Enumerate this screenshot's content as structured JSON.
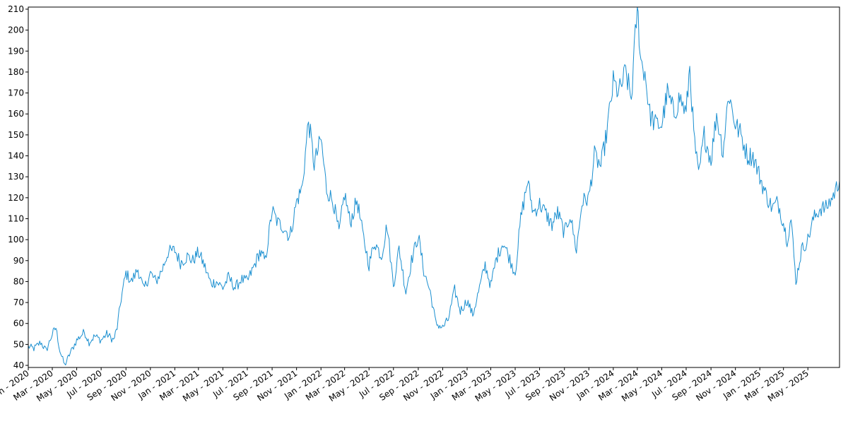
{
  "chart_data": {
    "type": "line",
    "title": "",
    "xlabel": "",
    "ylabel": "",
    "ylim": [
      39,
      211
    ],
    "yticks": [
      40,
      50,
      60,
      70,
      80,
      90,
      100,
      110,
      120,
      130,
      140,
      150,
      160,
      170,
      180,
      190,
      200,
      210
    ],
    "xlim": [
      "2020-01-01",
      "2025-07-19"
    ],
    "xticks": [
      {
        "date": "2020-01-01",
        "label": "Jan - 2020"
      },
      {
        "date": "2020-03-01",
        "label": "Mar - 2020"
      },
      {
        "date": "2020-05-01",
        "label": "May - 2020"
      },
      {
        "date": "2020-07-01",
        "label": "Jul - 2020"
      },
      {
        "date": "2020-09-01",
        "label": "Sep - 2020"
      },
      {
        "date": "2020-11-01",
        "label": "Nov - 2020"
      },
      {
        "date": "2021-01-01",
        "label": "Jan - 2021"
      },
      {
        "date": "2021-03-01",
        "label": "Mar - 2021"
      },
      {
        "date": "2021-05-01",
        "label": "May - 2021"
      },
      {
        "date": "2021-07-01",
        "label": "Jul - 2021"
      },
      {
        "date": "2021-09-01",
        "label": "Sep - 2021"
      },
      {
        "date": "2021-11-01",
        "label": "Nov - 2021"
      },
      {
        "date": "2022-01-01",
        "label": "Jan - 2022"
      },
      {
        "date": "2022-03-01",
        "label": "Mar - 2022"
      },
      {
        "date": "2022-05-01",
        "label": "May - 2022"
      },
      {
        "date": "2022-07-01",
        "label": "Jul - 2022"
      },
      {
        "date": "2022-09-01",
        "label": "Sep - 2022"
      },
      {
        "date": "2022-11-01",
        "label": "Nov - 2022"
      },
      {
        "date": "2023-01-01",
        "label": "Jan - 2023"
      },
      {
        "date": "2023-03-01",
        "label": "Mar - 2023"
      },
      {
        "date": "2023-05-01",
        "label": "May - 2023"
      },
      {
        "date": "2023-07-01",
        "label": "Jul - 2023"
      },
      {
        "date": "2023-09-01",
        "label": "Sep - 2023"
      },
      {
        "date": "2023-11-01",
        "label": "Nov - 2023"
      },
      {
        "date": "2024-01-01",
        "label": "Jan - 2024"
      },
      {
        "date": "2024-03-01",
        "label": "Mar - 2024"
      },
      {
        "date": "2024-05-01",
        "label": "May - 2024"
      },
      {
        "date": "2024-07-01",
        "label": "Jul - 2024"
      },
      {
        "date": "2024-09-01",
        "label": "Sep - 2024"
      },
      {
        "date": "2024-11-01",
        "label": "Nov - 2024"
      },
      {
        "date": "2025-01-01",
        "label": "Jan - 2025"
      },
      {
        "date": "2025-03-01",
        "label": "Mar - 2025"
      },
      {
        "date": "2025-05-01",
        "label": "May - 2025"
      }
    ],
    "grid": false,
    "legend": "none",
    "line_color": "#1a8fd0",
    "series": [
      {
        "x": [
          "2020-01-01",
          "2020-01-15",
          "2020-02-01",
          "2020-02-15",
          "2020-03-01",
          "2020-03-10",
          "2020-03-20",
          "2020-04-01",
          "2020-04-15",
          "2020-05-01",
          "2020-05-20",
          "2020-06-01",
          "2020-06-15",
          "2020-07-01",
          "2020-07-15",
          "2020-08-01",
          "2020-08-10",
          "2020-08-20",
          "2020-09-01",
          "2020-09-15",
          "2020-10-01",
          "2020-10-15",
          "2020-11-01",
          "2020-11-15",
          "2020-12-01",
          "2020-12-15",
          "2021-01-01",
          "2021-01-15",
          "2021-02-01",
          "2021-02-15",
          "2021-03-01",
          "2021-03-15",
          "2021-04-01",
          "2021-04-15",
          "2021-05-01",
          "2021-05-15",
          "2021-06-01",
          "2021-06-15",
          "2021-07-01",
          "2021-07-15",
          "2021-08-01",
          "2021-08-15",
          "2021-09-01",
          "2021-09-15",
          "2021-10-01",
          "2021-10-15",
          "2021-11-01",
          "2021-11-15",
          "2021-12-01",
          "2021-12-15",
          "2022-01-01",
          "2022-01-15",
          "2022-02-01",
          "2022-02-15",
          "2022-03-01",
          "2022-03-15",
          "2022-04-01",
          "2022-04-15",
          "2022-05-01",
          "2022-05-15",
          "2022-06-01",
          "2022-06-15",
          "2022-07-01",
          "2022-07-15",
          "2022-08-01",
          "2022-08-15",
          "2022-09-01",
          "2022-09-15",
          "2022-10-01",
          "2022-10-15",
          "2022-11-01",
          "2022-11-15",
          "2022-12-01",
          "2022-12-15",
          "2023-01-01",
          "2023-01-15",
          "2023-02-01",
          "2023-02-15",
          "2023-03-01",
          "2023-03-15",
          "2023-04-01",
          "2023-04-15",
          "2023-05-01",
          "2023-05-15",
          "2023-06-01",
          "2023-06-15",
          "2023-07-01",
          "2023-07-15",
          "2023-08-01",
          "2023-08-15",
          "2023-09-01",
          "2023-09-15",
          "2023-10-01",
          "2023-10-15",
          "2023-11-01",
          "2023-11-15",
          "2023-12-01",
          "2023-12-15",
          "2024-01-01",
          "2024-01-15",
          "2024-02-01",
          "2024-02-15",
          "2024-03-01",
          "2024-03-10",
          "2024-03-20",
          "2024-04-01",
          "2024-04-15",
          "2024-05-01",
          "2024-05-15",
          "2024-06-01",
          "2024-06-15",
          "2024-07-01",
          "2024-07-10",
          "2024-07-20",
          "2024-08-01",
          "2024-08-15",
          "2024-09-01",
          "2024-09-15",
          "2024-10-01",
          "2024-10-15",
          "2024-11-01",
          "2024-11-15",
          "2024-12-01",
          "2024-12-15",
          "2025-01-01",
          "2025-01-15",
          "2025-02-01",
          "2025-02-15",
          "2025-03-01",
          "2025-03-10",
          "2025-03-20",
          "2025-04-01",
          "2025-04-15",
          "2025-05-01",
          "2025-05-15",
          "2025-06-01",
          "2025-06-15",
          "2025-07-01",
          "2025-07-19"
        ],
        "y": [
          49,
          48,
          51,
          47,
          55,
          58,
          47,
          40,
          46,
          52,
          56,
          51,
          54,
          52,
          55,
          52,
          58,
          72,
          84,
          80,
          86,
          76,
          84,
          80,
          86,
          94,
          95,
          89,
          92,
          90,
          94,
          88,
          79,
          80,
          77,
          82,
          77,
          81,
          80,
          86,
          94,
          90,
          114,
          108,
          106,
          101,
          118,
          125,
          157,
          136,
          148,
          124,
          118,
          103,
          122,
          108,
          119,
          103,
          88,
          99,
          92,
          107,
          78,
          96,
          75,
          90,
          102,
          85,
          75,
          60,
          58,
          62,
          76,
          66,
          71,
          64,
          77,
          88,
          78,
          91,
          99,
          92,
          84,
          110,
          128,
          113,
          117,
          113,
          107,
          113,
          103,
          112,
          95,
          118,
          120,
          140,
          135,
          150,
          175,
          170,
          180,
          167,
          212,
          185,
          180,
          160,
          155,
          155,
          170,
          160,
          168,
          160,
          183,
          150,
          130,
          150,
          138,
          160,
          142,
          170,
          155,
          150,
          140,
          140,
          130,
          122,
          115,
          118,
          108,
          100,
          110,
          80,
          95,
          100,
          110,
          115,
          115,
          120,
          128
        ]
      }
    ]
  }
}
